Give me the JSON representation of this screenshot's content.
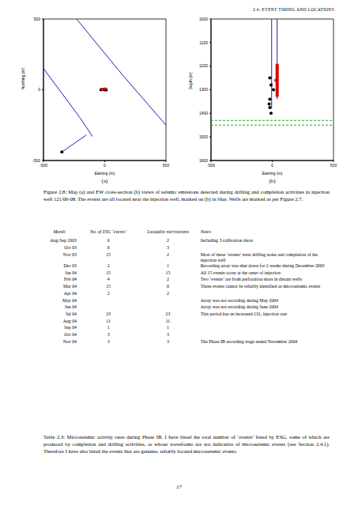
{
  "header": "2.4. EVENT TIMING AND LOCATIONS",
  "chart_data": [
    {
      "type": "scatter",
      "sublabel": "(a)",
      "xlabel": "Easting (m)",
      "ylabel": "Northing (m)",
      "xlim": [
        -500,
        500
      ],
      "ylim": [
        -500,
        500
      ],
      "xticks": [
        -500,
        0,
        500
      ],
      "yticks": [
        -500,
        0,
        500
      ],
      "series": [
        {
          "type": "line",
          "color": "#1f1fb4",
          "line_style": "solid",
          "points": [
            [
              -230,
              500
            ],
            [
              150,
              100
            ],
            [
              500,
              -250
            ]
          ]
        },
        {
          "type": "line",
          "color": "#1f1fb4",
          "line_style": "solid",
          "points": [
            [
              -500,
              150
            ],
            [
              -200,
              -200
            ],
            [
              -100,
              -330
            ]
          ]
        },
        {
          "type": "line",
          "color": "#1f1fb4",
          "line_style": "solid",
          "points": [
            [
              -350,
              -440
            ],
            [
              -150,
              -320
            ]
          ]
        },
        {
          "type": "scatter",
          "color": "#000000",
          "marker": "circle",
          "points": [
            [
              -30,
              0
            ],
            [
              -10,
              2
            ],
            [
              0,
              0
            ],
            [
              12,
              -2
            ],
            [
              -350,
              -440
            ]
          ]
        },
        {
          "type": "scatter",
          "color": "#e00000",
          "marker": "circle",
          "points": [
            [
              -20,
              3
            ],
            [
              5,
              5
            ]
          ]
        }
      ]
    },
    {
      "type": "scatter",
      "sublabel": "(b)",
      "xlabel": "Easting (m)",
      "ylabel": "Depth (m)",
      "xlim": [
        -500,
        500
      ],
      "ylim": [
        1600,
        1000
      ],
      "xticks": [
        -500,
        0,
        500
      ],
      "yticks": [
        1000,
        1100,
        1200,
        1300,
        1400,
        1500,
        1600
      ],
      "series": [
        {
          "type": "line",
          "color": "#1f1fb4",
          "line_style": "solid",
          "points": [
            [
              -5,
              1000
            ],
            [
              -5,
              1380
            ]
          ]
        },
        {
          "type": "line",
          "color": "#1f1fb4",
          "line_style": "solid",
          "points": [
            [
              40,
              1000
            ],
            [
              40,
              1340
            ]
          ]
        },
        {
          "type": "line",
          "color": "#e00000",
          "line_style": "thick",
          "points": [
            [
              40,
              1190
            ],
            [
              40,
              1330
            ]
          ]
        },
        {
          "type": "line",
          "color": "#22aa22",
          "line_style": "dashed",
          "points": [
            [
              -500,
              1430
            ],
            [
              500,
              1430
            ]
          ]
        },
        {
          "type": "line",
          "color": "#22aa22",
          "line_style": "dashed",
          "points": [
            [
              -500,
              1450
            ],
            [
              500,
              1450
            ]
          ]
        },
        {
          "type": "scatter",
          "color": "#000000",
          "marker": "circle",
          "points": [
            [
              -20,
              1250
            ],
            [
              -10,
              1280
            ],
            [
              10,
              1300
            ],
            [
              -20,
              1340
            ],
            [
              -25,
              1360
            ],
            [
              -20,
              1375
            ],
            [
              -10,
              1400
            ]
          ]
        },
        {
          "type": "scatter",
          "color": "#e00000",
          "marker": "circle",
          "points": [
            [
              40,
              1210
            ],
            [
              30,
              1260
            ]
          ]
        }
      ]
    }
  ],
  "figure_caption": "Figure 2.8: Map (a) and EW cross-section (b) views of seismic emissions detected during drilling and completion activities in injection well 121/06-08. The events are all located near the injection well, marked on (b) in blue. Wells are marked as per Figure 2.7.",
  "table": {
    "header": [
      "Month",
      "No. of ESG ‘events’",
      "Locatable microseisms",
      "Notes"
    ],
    "rows": [
      [
        "Aug-Sep 2003",
        6,
        2,
        "Including 3 calibration shots"
      ],
      [
        "Oct 03",
        6,
        3,
        null
      ],
      [
        "Nov 03",
        15,
        2,
        "Most of these ‘events’ were drilling noise and completion of the injection well"
      ],
      [
        "Dec 03",
        2,
        1,
        "Recording array was shut down for 2 weeks during December 2003"
      ],
      [
        "Jan 04",
        15,
        15,
        "All 15 events occur at the onset of injection"
      ],
      [
        "Feb 04",
        4,
        2,
        "Two ‘events’ are from perforation shots in distant wells"
      ],
      [
        "Mar 04",
        15,
        0,
        "These events cannot be reliably identified as microseismic events"
      ],
      [
        "Apr 04",
        2,
        2,
        null
      ],
      [
        "May 04",
        null,
        null,
        "Array was not recording during May 2004"
      ],
      [
        "Jun 04",
        null,
        null,
        "Array was not recording during June 2004"
      ],
      [
        "Jul 04",
        23,
        23,
        "This period has an increased CO₂ injection rate"
      ],
      [
        "Aug 04",
        11,
        11,
        null
      ],
      [
        "Sep 04",
        1,
        1,
        null
      ],
      [
        "Oct 04",
        3,
        3,
        null
      ],
      [
        "Nov 04",
        3,
        3,
        "The Phase IB recording stage ended November 2004"
      ]
    ]
  },
  "table_caption": "Table 2.3: Microseismic activity rates during Phase IB. I have listed the total number of ‘events’ listed by ESG, some of which are produced by completion and drilling activities, or whose waveforms are not indicative of microseismic events (see Section 2.4.1). Therefore I have also listed the events that are genuine, reliably located microseismic events.",
  "page_number": 17
}
